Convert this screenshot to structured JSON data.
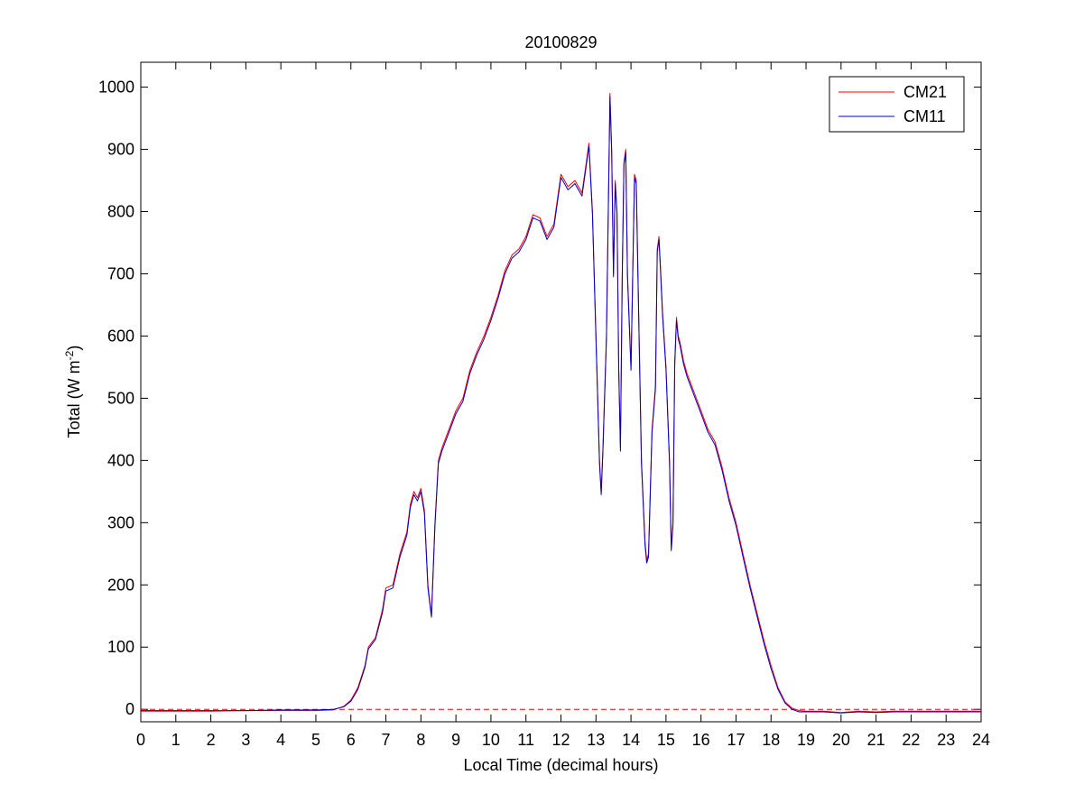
{
  "chart_data": {
    "type": "line",
    "title": "20100829",
    "xlabel": "Local Time (decimal hours)",
    "ylabel": {
      "main": "Total (W m",
      "sup": "-2",
      "close": ")"
    },
    "xlim": [
      0,
      24
    ],
    "ylim": [
      -20,
      1040
    ],
    "x_ticks": [
      "0",
      "1",
      "2",
      "3",
      "4",
      "5",
      "6",
      "7",
      "8",
      "9",
      "10",
      "11",
      "12",
      "13",
      "14",
      "15",
      "16",
      "17",
      "18",
      "19",
      "20",
      "21",
      "22",
      "23",
      "24"
    ],
    "y_ticks": [
      "0",
      "100",
      "200",
      "300",
      "400",
      "500",
      "600",
      "700",
      "800",
      "900",
      "1000"
    ],
    "grid": false,
    "legend_position": "top-right",
    "reference_line": {
      "y": 0,
      "style": "dashed",
      "color": "#ff0000"
    },
    "series": [
      {
        "name": "CM21",
        "color": "#ff0000",
        "x": [
          0,
          1,
          2,
          3,
          4,
          5,
          5.5,
          5.8,
          6.0,
          6.2,
          6.4,
          6.5,
          6.7,
          6.9,
          7.0,
          7.2,
          7.4,
          7.6,
          7.7,
          7.8,
          7.9,
          8.0,
          8.1,
          8.2,
          8.3,
          8.4,
          8.5,
          8.6,
          8.8,
          9.0,
          9.2,
          9.4,
          9.6,
          9.8,
          10.0,
          10.2,
          10.4,
          10.6,
          10.8,
          11.0,
          11.2,
          11.4,
          11.6,
          11.8,
          12.0,
          12.2,
          12.4,
          12.6,
          12.7,
          12.8,
          12.9,
          13.0,
          13.1,
          13.15,
          13.2,
          13.3,
          13.4,
          13.45,
          13.5,
          13.55,
          13.6,
          13.65,
          13.7,
          13.75,
          13.8,
          13.85,
          13.9,
          14.0,
          14.1,
          14.15,
          14.2,
          14.3,
          14.4,
          14.45,
          14.5,
          14.6,
          14.7,
          14.75,
          14.8,
          14.85,
          14.9,
          15.0,
          15.1,
          15.15,
          15.2,
          15.25,
          15.3,
          15.35,
          15.4,
          15.5,
          15.6,
          15.8,
          16.0,
          16.2,
          16.4,
          16.6,
          16.8,
          17.0,
          17.2,
          17.4,
          17.6,
          17.8,
          18.0,
          18.2,
          18.4,
          18.6,
          18.8,
          19.0,
          19.5,
          20.0,
          20.5,
          21.0,
          21.5,
          22.0,
          23.0,
          24.0
        ],
        "values": [
          -3,
          -3,
          -3,
          -2,
          -2,
          -2,
          -1,
          5,
          15,
          35,
          70,
          100,
          115,
          160,
          195,
          200,
          250,
          285,
          330,
          350,
          340,
          355,
          320,
          200,
          150,
          300,
          400,
          420,
          450,
          480,
          500,
          545,
          575,
          600,
          630,
          665,
          705,
          730,
          740,
          760,
          795,
          790,
          760,
          780,
          860,
          840,
          850,
          830,
          870,
          910,
          800,
          600,
          400,
          350,
          420,
          600,
          990,
          900,
          700,
          850,
          800,
          550,
          420,
          700,
          880,
          900,
          700,
          550,
          860,
          850,
          700,
          400,
          270,
          240,
          250,
          450,
          520,
          740,
          760,
          700,
          640,
          550,
          400,
          260,
          300,
          560,
          630,
          600,
          590,
          560,
          540,
          510,
          480,
          450,
          430,
          390,
          340,
          300,
          250,
          200,
          155,
          110,
          70,
          35,
          12,
          2,
          -2,
          -3,
          -3,
          -5,
          -3,
          -4,
          -3,
          -3,
          -3,
          -3
        ]
      },
      {
        "name": "CM11",
        "color": "#0000cc",
        "x": [
          0,
          1,
          2,
          3,
          4,
          5,
          5.5,
          5.8,
          6.0,
          6.2,
          6.4,
          6.5,
          6.7,
          6.9,
          7.0,
          7.2,
          7.4,
          7.6,
          7.7,
          7.8,
          7.9,
          8.0,
          8.1,
          8.2,
          8.3,
          8.4,
          8.5,
          8.6,
          8.8,
          9.0,
          9.2,
          9.4,
          9.6,
          9.8,
          10.0,
          10.2,
          10.4,
          10.6,
          10.8,
          11.0,
          11.2,
          11.4,
          11.6,
          11.8,
          12.0,
          12.2,
          12.4,
          12.6,
          12.7,
          12.8,
          12.9,
          13.0,
          13.1,
          13.15,
          13.2,
          13.3,
          13.4,
          13.45,
          13.5,
          13.55,
          13.6,
          13.65,
          13.7,
          13.75,
          13.8,
          13.85,
          13.9,
          14.0,
          14.1,
          14.15,
          14.2,
          14.3,
          14.4,
          14.45,
          14.5,
          14.6,
          14.7,
          14.75,
          14.8,
          14.85,
          14.9,
          15.0,
          15.1,
          15.15,
          15.2,
          15.25,
          15.3,
          15.35,
          15.4,
          15.5,
          15.6,
          15.8,
          16.0,
          16.2,
          16.4,
          16.6,
          16.8,
          17.0,
          17.2,
          17.4,
          17.6,
          17.8,
          18.0,
          18.2,
          18.4,
          18.6,
          18.8,
          19.0,
          19.5,
          20.0,
          20.5,
          21.0,
          21.5,
          22.0,
          23.0,
          24.0
        ],
        "values": [
          -2,
          -2,
          -2,
          -2,
          -1,
          -1,
          0,
          4,
          13,
          32,
          67,
          97,
          112,
          155,
          190,
          195,
          245,
          280,
          325,
          345,
          335,
          350,
          315,
          195,
          148,
          295,
          395,
          415,
          445,
          475,
          495,
          540,
          570,
          595,
          625,
          660,
          700,
          725,
          735,
          755,
          790,
          785,
          755,
          775,
          855,
          835,
          845,
          825,
          865,
          905,
          795,
          595,
          395,
          345,
          415,
          595,
          985,
          895,
          695,
          845,
          795,
          545,
          415,
          695,
          875,
          895,
          695,
          545,
          855,
          845,
          695,
          395,
          265,
          235,
          245,
          445,
          515,
          735,
          755,
          695,
          635,
          545,
          395,
          255,
          295,
          555,
          625,
          595,
          585,
          555,
          535,
          505,
          475,
          445,
          425,
          385,
          335,
          295,
          245,
          195,
          150,
          105,
          65,
          32,
          10,
          0,
          -4,
          -4,
          -4,
          -6,
          -4,
          -5,
          -4,
          -4,
          -4,
          -4
        ]
      }
    ]
  }
}
